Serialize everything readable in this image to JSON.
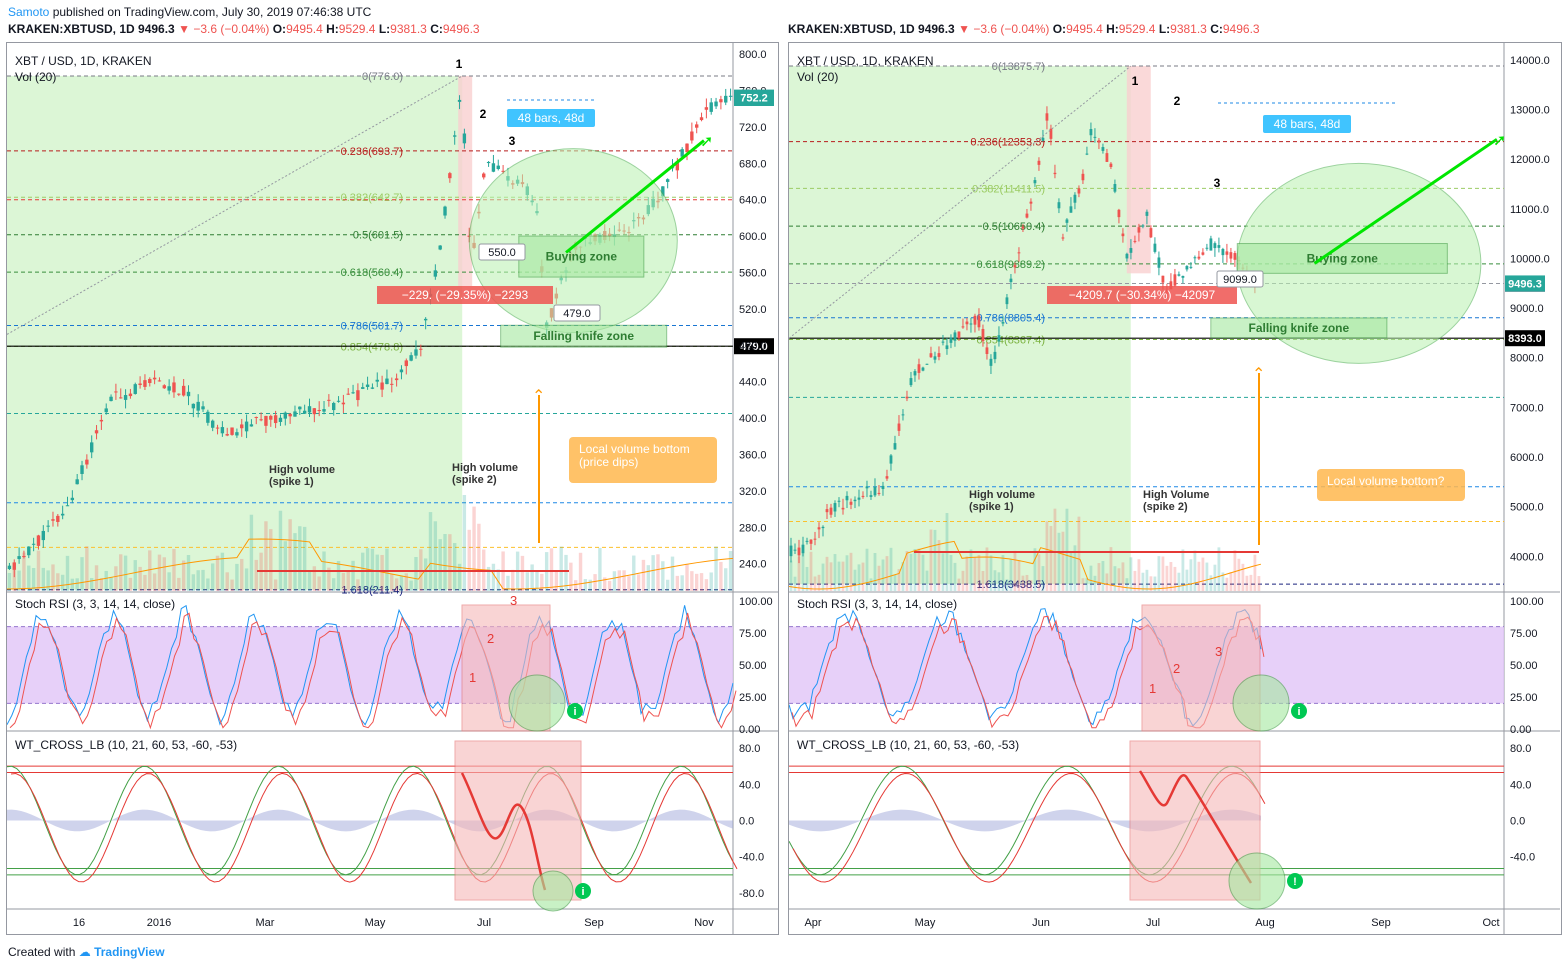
{
  "header": {
    "user": "Samoto",
    "published": "published on TradingView.com, July 30, 2019 07:46:38 UTC",
    "left_symbol": "KRAKEN:XBTUSD, 1D",
    "left_price": "9496.3",
    "left_change": "−3.6 (−0.04%)",
    "left_ohlc": {
      "O": "9495.4",
      "H": "9529.4",
      "L": "9381.3",
      "C": "9496.3"
    },
    "right_symbol": "KRAKEN:XBTUSD, 1D",
    "right_price": "9496.3",
    "right_change": "−3.6 (−0.04%)",
    "right_ohlc": {
      "O": "9495.4",
      "H": "9529.4",
      "L": "9381.3",
      "C": "9496.3"
    }
  },
  "footer": {
    "created_with": "Created with",
    "brand": "TradingView"
  },
  "colors": {
    "up": "#26a69a",
    "down": "#ef5350",
    "fib_zone": "#c8f0c0",
    "stoch_band": "#e1c4f8",
    "highlight": "#f6b8b8",
    "annotation": "#ffb74d"
  },
  "chart_data": [
    {
      "type": "candlestick",
      "title": "XBT / USD, 1D, KRAKEN",
      "indicator": "Vol (20)",
      "x_ticks": [
        "16",
        "2016",
        "Mar",
        "May",
        "Jul",
        "Sep",
        "Nov"
      ],
      "y_ticks": [
        "800.0",
        "760.0",
        "720.0",
        "680.0",
        "640.0",
        "600.0",
        "560.0",
        "520.0",
        "480.0",
        "440.0",
        "400.0",
        "360.0",
        "320.0",
        "280.0",
        "240.0"
      ],
      "ylim": [
        210,
        810
      ],
      "last_price": "752.2",
      "support_line": "479.0",
      "fib_levels": [
        {
          "label": "0(776.0)",
          "value": 776
        },
        {
          "label": "0.236(693.7)",
          "value": 693.7
        },
        {
          "label": "0.382(642.7)",
          "value": 642.7
        },
        {
          "label": "0.5(601.5)",
          "value": 601.5
        },
        {
          "label": "0.618(560.4)",
          "value": 560.4
        },
        {
          "label": "0.786(501.7)",
          "value": 501.7
        },
        {
          "label": "0.854(478.8)",
          "value": 478.8
        },
        {
          "label": "1.618(211.4)",
          "value": 211.4
        }
      ],
      "key_points": [
        {
          "label": "1",
          "x": "2016-06-17",
          "y": 776
        },
        {
          "label": "2",
          "x": "2016-07-01",
          "y": 725
        },
        {
          "label": "3",
          "x": "2016-07-12",
          "y": 690
        },
        {
          "label": "550.0",
          "x": "2016-07-20",
          "y": 550
        },
        {
          "label": "479.0",
          "x": "2016-08-02",
          "y": 479
        },
        {
          "label": "752.2",
          "x": "2016-11-08",
          "y": 752.2
        }
      ],
      "annotations": [
        "48 bars, 48d",
        "Buying zone",
        "Falling knife zone",
        "−229.",
        "(−29.35%)",
        "−2293",
        "Local volume bottom",
        "(price dips)",
        "High volume",
        "(spike 1)",
        "High volume",
        "(spike 2)"
      ],
      "stoch_rsi": {
        "title": "Stoch RSI (3, 3, 14, 14, close)",
        "y_ticks": [
          "100.00",
          "75.00",
          "50.00",
          "25.00",
          "0.00"
        ],
        "band": [
          20,
          80
        ],
        "labels": [
          "1",
          "2",
          "3"
        ]
      },
      "wt_cross": {
        "title": "WT_CROSS_LB (10, 21, 60, 53, -60, -53)",
        "y_ticks": [
          "80.0",
          "40.0",
          "0.0",
          "-40.0",
          "-80.0"
        ]
      }
    },
    {
      "type": "candlestick",
      "title": "XBT / USD, 1D, KRAKEN",
      "indicator": "Vol (20)",
      "x_ticks": [
        "Apr",
        "May",
        "Jun",
        "Jul",
        "Aug",
        "Sep",
        "Oct"
      ],
      "y_ticks": [
        "14000.0",
        "13000.0",
        "12000.0",
        "11000.0",
        "10000.0",
        "9000.0",
        "8000.0",
        "7000.0",
        "6000.0",
        "5000.0",
        "4000.0"
      ],
      "ylim": [
        3300,
        14300
      ],
      "last_price": "9496.3",
      "support_line": "8393.0",
      "fib_levels": [
        {
          "label": "0(13875.7)",
          "value": 13875.7
        },
        {
          "label": "0.236(12353.3)",
          "value": 12353.3
        },
        {
          "label": "0.382(11411.5)",
          "value": 11411.5
        },
        {
          "label": "0.5(10650.4)",
          "value": 10650.4
        },
        {
          "label": "0.618(9889.2)",
          "value": 9889.2
        },
        {
          "label": "0.786(8805.4)",
          "value": 8805.4
        },
        {
          "label": "0.854(8367.4)",
          "value": 8367.4
        },
        {
          "label": "1.618(3438.5)",
          "value": 3438.5
        }
      ],
      "key_points": [
        {
          "label": "1",
          "x": "2019-06-26",
          "y": 13875.7
        },
        {
          "label": "2",
          "x": "2019-07-10",
          "y": 13150
        },
        {
          "label": "3",
          "x": "2019-07-19",
          "y": 11100
        },
        {
          "label": "9099.0",
          "x": "2019-07-17",
          "y": 9099
        },
        {
          "label": "9496.3",
          "x": "2019-07-30",
          "y": 9496.3
        }
      ],
      "annotations": [
        "48 bars, 48d",
        "Buying zone",
        "Falling knife zone",
        "−4209.7 (−30.34%) −42097",
        "Local volume bottom?",
        "High volume",
        "(spike 1)",
        "High Volume",
        "(spike 2)"
      ],
      "stoch_rsi": {
        "title": "Stoch RSI (3, 3, 14, 14, close)",
        "y_ticks": [
          "100.00",
          "75.00",
          "50.00",
          "25.00",
          "0.00"
        ],
        "band": [
          20,
          80
        ],
        "labels": [
          "1",
          "2",
          "3"
        ]
      },
      "wt_cross": {
        "title": "WT_CROSS_LB (10, 21, 60, 53, -60, -53)",
        "y_ticks": [
          "80.0",
          "40.0",
          "0.0",
          "-40.0"
        ]
      }
    }
  ]
}
